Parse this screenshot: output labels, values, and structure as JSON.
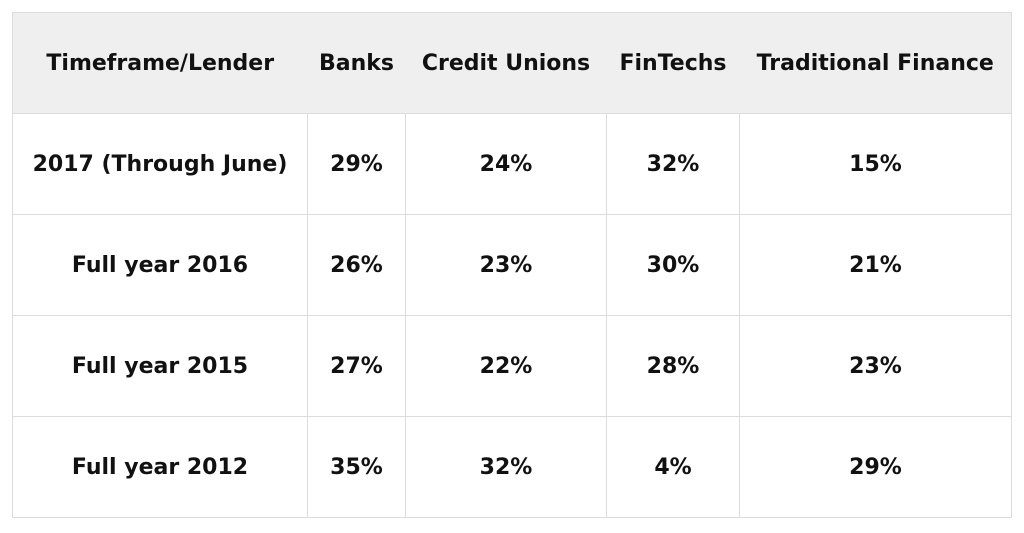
{
  "table": {
    "header": [
      "Timeframe/Lender",
      "Banks",
      "Credit Unions",
      "FinTechs",
      "Traditional Finance"
    ],
    "rows": [
      [
        "2017 (Through June)",
        "29%",
        "24%",
        "32%",
        "15%"
      ],
      [
        "Full year 2016",
        "26%",
        "23%",
        "30%",
        "21%"
      ],
      [
        "Full year 2015",
        "27%",
        "22%",
        "28%",
        "23%"
      ],
      [
        "Full year 2012",
        "35%",
        "32%",
        "4%",
        "29%"
      ]
    ]
  }
}
